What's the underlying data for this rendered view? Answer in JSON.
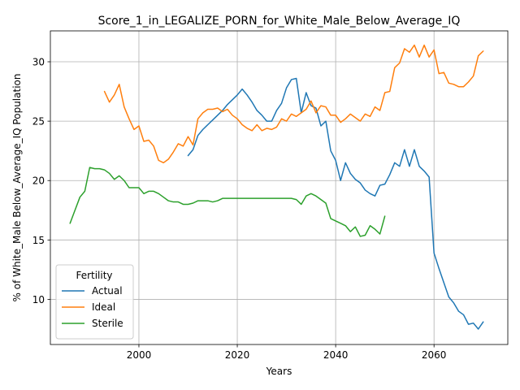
{
  "chart_data": {
    "type": "line",
    "title": "Score_1_in_LEGALIZE_PORN_for_White_Male_Below_Average_IQ",
    "xlabel": "Years",
    "ylabel": "% of White_Male Below_Average_IQ Population",
    "xlim": [
      1982,
      2075
    ],
    "ylim": [
      6.2,
      32.6
    ],
    "xticks": [
      2000,
      2020,
      2040,
      2060
    ],
    "yticks": [
      10,
      15,
      20,
      25,
      30
    ],
    "grid": true,
    "legend": {
      "title": "Fertility",
      "placement": "lower-left"
    },
    "series": [
      {
        "name": "Actual",
        "color": "#1f77b4",
        "x": [
          2010,
          2011,
          2012,
          2013,
          2014,
          2015,
          2016,
          2017,
          2018,
          2019,
          2020,
          2021,
          2022,
          2023,
          2024,
          2025,
          2026,
          2027,
          2028,
          2029,
          2030,
          2031,
          2032,
          2033,
          2034,
          2035,
          2036,
          2037,
          2038,
          2039,
          2040,
          2041,
          2042,
          2043,
          2044,
          2045,
          2046,
          2047,
          2048,
          2049,
          2050,
          2051,
          2052,
          2053,
          2054,
          2055,
          2056,
          2057,
          2058,
          2059,
          2060,
          2061,
          2062,
          2063,
          2064,
          2065,
          2066,
          2067,
          2068,
          2069,
          2070
        ],
        "y": [
          22.1,
          22.6,
          23.8,
          24.3,
          24.7,
          25.1,
          25.5,
          25.9,
          26.4,
          26.8,
          27.2,
          27.7,
          27.2,
          26.6,
          25.9,
          25.5,
          25.0,
          25.0,
          25.9,
          26.5,
          27.8,
          28.5,
          28.6,
          25.7,
          27.4,
          26.3,
          26.1,
          24.6,
          25.0,
          22.5,
          21.7,
          20.0,
          21.5,
          20.6,
          20.1,
          19.8,
          19.2,
          18.9,
          18.7,
          19.6,
          19.7,
          20.5,
          21.5,
          21.2,
          22.6,
          21.2,
          22.6,
          21.2,
          20.8,
          20.3,
          13.9,
          12.6,
          11.4,
          10.2,
          9.7,
          9.0,
          8.7,
          7.9,
          8.0,
          7.5,
          8.1
        ]
      },
      {
        "name": "Ideal",
        "color": "#ff7f0e",
        "x": [
          1993,
          1994,
          1995,
          1996,
          1997,
          1998,
          1999,
          2000,
          2001,
          2002,
          2003,
          2004,
          2005,
          2006,
          2007,
          2008,
          2009,
          2010,
          2011,
          2012,
          2013,
          2014,
          2015,
          2016,
          2017,
          2018,
          2019,
          2020,
          2021,
          2022,
          2023,
          2024,
          2025,
          2026,
          2027,
          2028,
          2029,
          2030,
          2031,
          2032,
          2033,
          2034,
          2035,
          2036,
          2037,
          2038,
          2039,
          2040,
          2041,
          2042,
          2043,
          2044,
          2045,
          2046,
          2047,
          2048,
          2049,
          2050,
          2051,
          2052,
          2053,
          2054,
          2055,
          2056,
          2057,
          2058,
          2059,
          2060,
          2061,
          2062,
          2063,
          2064,
          2065,
          2066,
          2067,
          2068,
          2069,
          2070
        ],
        "y": [
          27.5,
          26.6,
          27.2,
          28.1,
          26.2,
          25.2,
          24.3,
          24.6,
          23.3,
          23.4,
          22.9,
          21.7,
          21.5,
          21.8,
          22.4,
          23.1,
          22.9,
          23.7,
          23.0,
          25.2,
          25.7,
          26.0,
          26.0,
          26.1,
          25.8,
          26.0,
          25.5,
          25.2,
          24.7,
          24.4,
          24.2,
          24.7,
          24.2,
          24.4,
          24.3,
          24.5,
          25.2,
          25.0,
          25.6,
          25.4,
          25.7,
          26.0,
          26.7,
          25.7,
          26.3,
          26.2,
          25.5,
          25.5,
          24.9,
          25.2,
          25.6,
          25.3,
          25.0,
          25.6,
          25.4,
          26.2,
          25.9,
          27.4,
          27.5,
          29.5,
          29.9,
          31.1,
          30.8,
          31.4,
          30.4,
          31.4,
          30.4,
          31.0,
          29.0,
          29.1,
          28.2,
          28.1,
          27.9,
          27.9,
          28.3,
          28.8,
          30.5,
          30.9
        ]
      },
      {
        "name": "Sterile",
        "color": "#2ca02c",
        "x": [
          1986,
          1987,
          1988,
          1989,
          1990,
          1991,
          1992,
          1993,
          1994,
          1995,
          1996,
          1997,
          1998,
          1999,
          2000,
          2001,
          2002,
          2003,
          2004,
          2005,
          2006,
          2007,
          2008,
          2009,
          2010,
          2011,
          2012,
          2013,
          2014,
          2015,
          2016,
          2017,
          2018,
          2019,
          2020,
          2021,
          2022,
          2023,
          2024,
          2025,
          2026,
          2027,
          2028,
          2029,
          2030,
          2031,
          2032,
          2033,
          2034,
          2035,
          2036,
          2037,
          2038,
          2039,
          2040,
          2041,
          2042,
          2043,
          2044,
          2045,
          2046,
          2047,
          2048,
          2049,
          2050
        ],
        "y": [
          16.4,
          17.5,
          18.6,
          19.1,
          21.1,
          21.0,
          21.0,
          20.9,
          20.6,
          20.1,
          20.4,
          20.0,
          19.4,
          19.4,
          19.4,
          18.9,
          19.1,
          19.1,
          18.9,
          18.6,
          18.3,
          18.2,
          18.2,
          18.0,
          18.0,
          18.1,
          18.3,
          18.3,
          18.3,
          18.2,
          18.3,
          18.5,
          18.5,
          18.5,
          18.5,
          18.5,
          18.5,
          18.5,
          18.5,
          18.5,
          18.5,
          18.5,
          18.5,
          18.5,
          18.5,
          18.5,
          18.4,
          18.0,
          18.7,
          18.9,
          18.7,
          18.4,
          18.1,
          16.8,
          16.6,
          16.4,
          16.2,
          15.7,
          16.1,
          15.3,
          15.4,
          16.2,
          15.9,
          15.5,
          17.0
        ]
      }
    ]
  }
}
